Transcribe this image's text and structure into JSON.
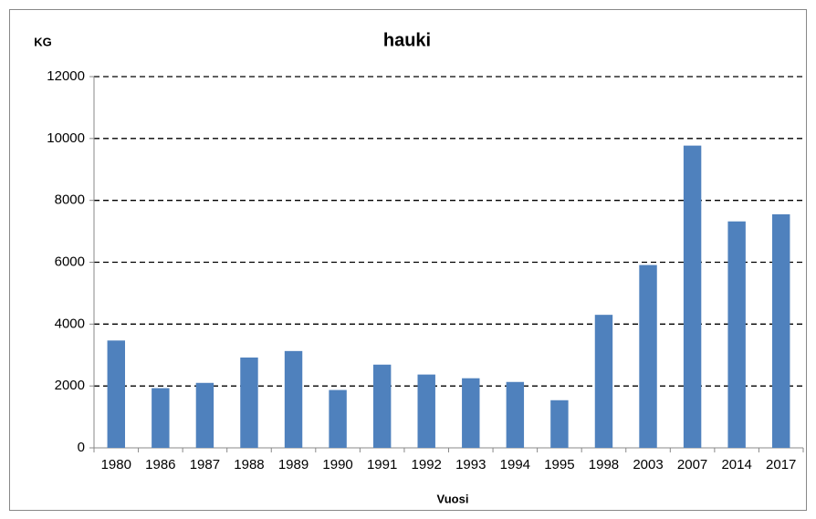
{
  "chart_data": {
    "type": "bar",
    "title": "hauki",
    "y_label": "KG",
    "x_label": "Vuosi",
    "categories": [
      "1980",
      "1986",
      "1987",
      "1988",
      "1989",
      "1990",
      "1991",
      "1992",
      "1993",
      "1994",
      "1995",
      "1998",
      "2003",
      "2007",
      "2014",
      "2017"
    ],
    "values": [
      3470,
      1930,
      2100,
      2920,
      3130,
      1870,
      2690,
      2370,
      2250,
      2130,
      1540,
      4300,
      5910,
      9770,
      7320,
      7550
    ],
    "color": "#4f81bd",
    "ylim": [
      0,
      12000
    ],
    "yticks": [
      0,
      2000,
      4000,
      6000,
      8000,
      10000,
      12000
    ],
    "grid": true
  }
}
